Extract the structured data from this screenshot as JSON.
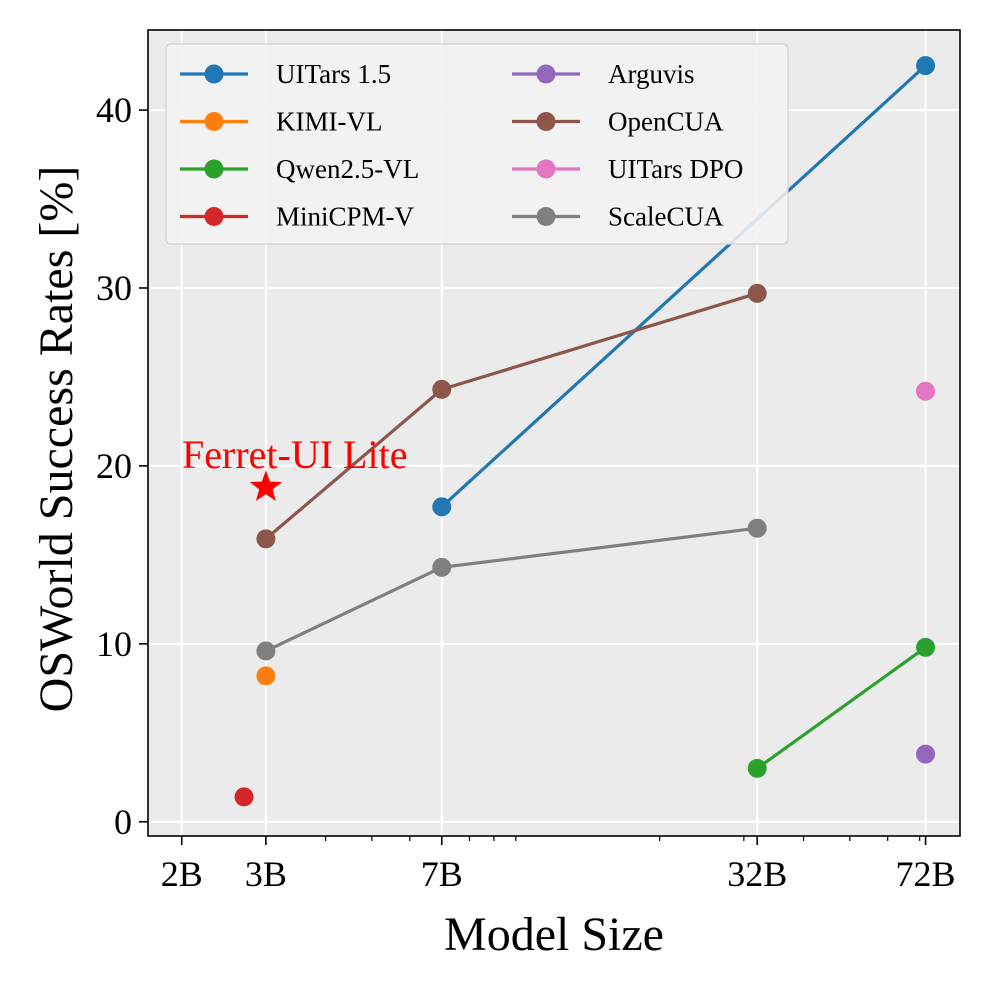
{
  "chart_data": {
    "type": "line",
    "xscale": "log",
    "xlabel": "Model Size",
    "ylabel": "OSWorld Success Rates [%]",
    "xlim": [
      1.7,
      85
    ],
    "ylim": [
      -0.8,
      44.5
    ],
    "grid": true,
    "legend_placement": "top-left",
    "x_ticks": [
      {
        "value": 2,
        "label": "2B"
      },
      {
        "value": 3,
        "label": "3B"
      },
      {
        "value": 7,
        "label": "7B"
      },
      {
        "value": 32,
        "label": "32B"
      },
      {
        "value": 72,
        "label": "72B"
      }
    ],
    "x_minor_ticks": [
      4,
      5,
      6,
      8,
      9,
      10,
      20,
      30,
      40,
      50,
      60,
      70
    ],
    "y_ticks": [
      {
        "value": 0,
        "label": "0"
      },
      {
        "value": 10,
        "label": "10"
      },
      {
        "value": 20,
        "label": "20"
      },
      {
        "value": 30,
        "label": "30"
      },
      {
        "value": 40,
        "label": "40"
      }
    ],
    "series": [
      {
        "name": "UITars 1.5",
        "color": "#1f77b4",
        "points": [
          [
            7,
            17.7
          ],
          [
            72,
            42.5
          ]
        ]
      },
      {
        "name": "KIMI-VL",
        "color": "#ff7f0e",
        "points": [
          [
            3,
            8.2
          ]
        ]
      },
      {
        "name": "Qwen2.5-VL",
        "color": "#2ca02c",
        "points": [
          [
            32,
            3.0
          ],
          [
            72,
            9.8
          ]
        ]
      },
      {
        "name": "MiniCPM-V",
        "color": "#d62728",
        "points": [
          [
            2.7,
            1.4
          ]
        ]
      },
      {
        "name": "Arguvis",
        "color": "#9467bd",
        "points": [
          [
            72,
            3.8
          ]
        ]
      },
      {
        "name": "OpenCUA",
        "color": "#8c564b",
        "points": [
          [
            3,
            15.9
          ],
          [
            7,
            24.3
          ],
          [
            32,
            29.7
          ]
        ]
      },
      {
        "name": "UITars DPO",
        "color": "#e377c2",
        "points": [
          [
            72,
            24.2
          ]
        ]
      },
      {
        "name": "ScaleCUA",
        "color": "#7f7f7f",
        "points": [
          [
            3,
            9.6
          ],
          [
            7,
            14.3
          ],
          [
            32,
            16.5
          ]
        ]
      }
    ],
    "annotations": [
      {
        "text": "Ferret-UI Lite",
        "x": 3,
        "y": 18.8,
        "marker": "star",
        "color": "#ff0000"
      }
    ]
  }
}
